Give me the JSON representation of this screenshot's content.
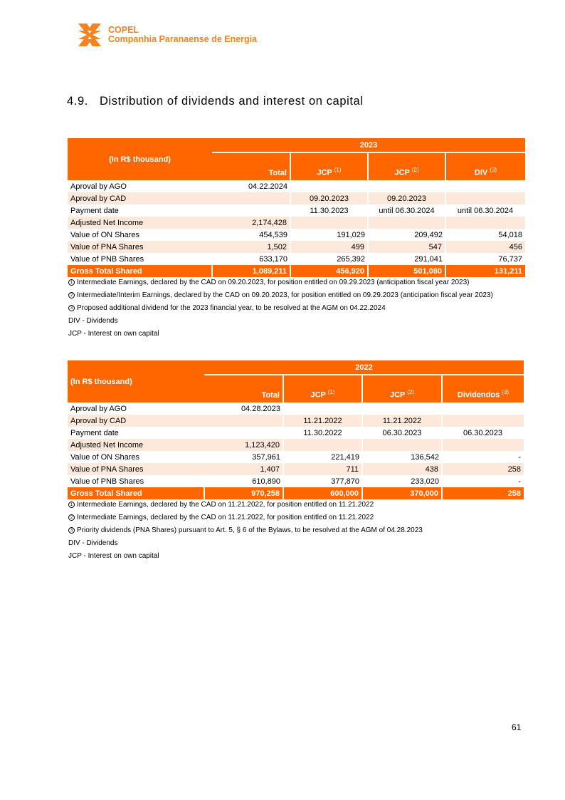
{
  "header": {
    "company_short": "COPEL",
    "company_full": "Companhia Paranaense de Energia"
  },
  "section": {
    "number": "4.9.",
    "title": "Distribution of dividends and interest on capital"
  },
  "tables": [
    {
      "unit_label": "(In R$ thousand)",
      "year": "2023",
      "label_align": "center",
      "columns": [
        {
          "label": "Total",
          "sup": ""
        },
        {
          "label": "JCP",
          "sup": "(1)"
        },
        {
          "label": "JCP",
          "sup": "(2)"
        },
        {
          "label": "DIV",
          "sup": "(3)"
        }
      ],
      "rows": [
        {
          "label": "Aproval by AGO",
          "cells": [
            "04.22.2024",
            "",
            "",
            ""
          ],
          "align": "c"
        },
        {
          "label": "Aproval by CAD",
          "cells": [
            "",
            "09.20.2023",
            "09.20.2023",
            ""
          ],
          "align": "c"
        },
        {
          "label": "Payment date",
          "cells": [
            "",
            "11.30.2023",
            "until 06.30.2024",
            "until 06.30.2024"
          ],
          "align": "c"
        },
        {
          "label": "Adjusted Net Income",
          "cells": [
            "2,174,428",
            "",
            "",
            ""
          ],
          "align": "r"
        },
        {
          "label": "Value of ON Shares",
          "cells": [
            "454,539",
            "191,029",
            "209,492",
            "54,018"
          ],
          "align": "r"
        },
        {
          "label": "Value of PNA Shares",
          "cells": [
            "1,502",
            "499",
            "547",
            "456"
          ],
          "align": "r"
        },
        {
          "label": "Value of PNB Shares",
          "cells": [
            "633,170",
            "265,392",
            "291,041",
            "76,737"
          ],
          "align": "r"
        }
      ],
      "total": {
        "label": "Gross Total Shared",
        "cells": [
          "1,089,211",
          "456,920",
          "501,080",
          "131,211"
        ]
      },
      "notes": [
        {
          "marker": "1",
          "text": "Intermediate Earnings, declared by the CAD on 09.20.2023, for position entitled on 09.29.2023 (anticipation fiscal year 2023)"
        },
        {
          "marker": "2",
          "text": "Intermediate/Interim Earnings, declared by the CAD on 09.20.2023, for position entitled on 09.29.2023  (anticipation fiscal year 2023)"
        },
        {
          "marker": "3",
          "text": "Proposed additional dividend for the 2023 financial year, to be resolved at the AGM on 04.22.2024"
        },
        {
          "marker": "",
          "text": "DIV - Dividends"
        },
        {
          "marker": "",
          "text": "JCP - Interest on own capital"
        }
      ]
    },
    {
      "unit_label": "(In R$ thousand)",
      "year": "2022",
      "label_align": "left",
      "columns": [
        {
          "label": "Total",
          "sup": ""
        },
        {
          "label": "JCP",
          "sup": "(1)"
        },
        {
          "label": "JCP",
          "sup": "(2)"
        },
        {
          "label": "Dividendos",
          "sup": "(3)"
        }
      ],
      "rows": [
        {
          "label": "Aproval by AGO",
          "cells": [
            "04.28.2023",
            "",
            "",
            ""
          ],
          "align": "c"
        },
        {
          "label": "Aproval by CAD",
          "cells": [
            "",
            "11.21.2022",
            "11.21.2022",
            ""
          ],
          "align": "c"
        },
        {
          "label": "Payment date",
          "cells": [
            "",
            "11.30.2022",
            "06.30.2023",
            "06.30.2023"
          ],
          "align": "c"
        },
        {
          "label": "Adjusted Net Income",
          "cells": [
            "1,123,420",
            "",
            "",
            ""
          ],
          "align": "r"
        },
        {
          "label": "Value of ON Shares",
          "cells": [
            "357,961",
            "221,419",
            "136,542",
            "-"
          ],
          "align": "r"
        },
        {
          "label": "Value of PNA Shares",
          "cells": [
            "1,407",
            "711",
            "438",
            "258"
          ],
          "align": "r"
        },
        {
          "label": "Value of PNB Shares",
          "cells": [
            "610,890",
            "377,870",
            "233,020",
            "-"
          ],
          "align": "r"
        }
      ],
      "total": {
        "label": "Gross Total Shared",
        "cells": [
          "970,258",
          "600,000",
          "370,000",
          "258"
        ]
      },
      "notes": [
        {
          "marker": "1",
          "text": "Intermediate Earnings, declared by the CAD on 11.21.2022, for position entitled on 11.21.2022"
        },
        {
          "marker": "2",
          "text": "Intermediate Earnings, declared by the CAD on 11.21.2022, for position entitled on 11.21.2022"
        },
        {
          "marker": "3",
          "text": "Priority dividends (PNA Shares) pursuant to Art. 5, § 6 of the Bylaws, to be resolved at the AGM of 04.28.2023"
        },
        {
          "marker": "",
          "text": "DIV - Dividends"
        },
        {
          "marker": "",
          "text": "JCP - Interest on own capital"
        }
      ]
    }
  ],
  "footer": {
    "page_number": "61"
  }
}
